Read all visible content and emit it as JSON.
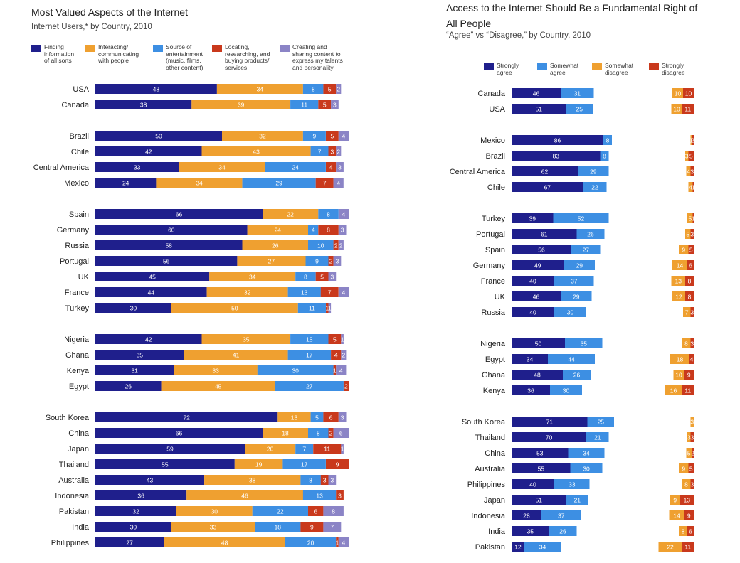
{
  "colors": {
    "dark_blue": "#1f1f8c",
    "light_blue": "#3d8fe3",
    "orange": "#efa030",
    "red": "#c9391c",
    "purple": "#8b84c6"
  },
  "chart_data": [
    {
      "type": "bar",
      "orientation": "horizontal",
      "stacked": true,
      "title": "Most Valued Aspects of the Internet",
      "subtitle": "Internet Users,* by Country, 2010",
      "legend_position": "top",
      "legend": [
        "Finding\ninformation\nof all sorts",
        "Interacting/\ncommunicating\nwith people",
        "Source of\nentertainment\n(music, films,\nother content)",
        "Locating,\nresearching, and\nbuying products/\nservices",
        "Creating and\nsharing content to\nexpress my talents\nand personality"
      ],
      "groups": [
        [
          {
            "label": "USA",
            "values": [
              48,
              34,
              8,
              5,
              2
            ]
          },
          {
            "label": "Canada",
            "values": [
              38,
              39,
              11,
              5,
              3
            ]
          }
        ],
        [
          {
            "label": "Brazil",
            "values": [
              50,
              32,
              9,
              5,
              4
            ]
          },
          {
            "label": "Chile",
            "values": [
              42,
              43,
              7,
              3,
              2
            ]
          },
          {
            "label": "Central America",
            "values": [
              33,
              34,
              24,
              4,
              3
            ]
          },
          {
            "label": "Mexico",
            "values": [
              24,
              34,
              29,
              7,
              4
            ]
          }
        ],
        [
          {
            "label": "Spain",
            "values": [
              66,
              22,
              8,
              0,
              4
            ]
          },
          {
            "label": "Germany",
            "values": [
              60,
              24,
              4,
              8,
              3
            ]
          },
          {
            "label": "Russia",
            "values": [
              58,
              26,
              10,
              2,
              2
            ]
          },
          {
            "label": "Portugal",
            "values": [
              56,
              27,
              9,
              2,
              3
            ]
          },
          {
            "label": "UK",
            "values": [
              45,
              34,
              8,
              5,
              3
            ]
          },
          {
            "label": "France",
            "values": [
              44,
              32,
              13,
              7,
              4
            ]
          },
          {
            "label": "Turkey",
            "values": [
              30,
              50,
              11,
              1,
              1
            ]
          }
        ],
        [
          {
            "label": "Nigeria",
            "values": [
              42,
              35,
              15,
              5,
              1
            ]
          },
          {
            "label": "Ghana",
            "values": [
              35,
              41,
              17,
              4,
              2
            ]
          },
          {
            "label": "Kenya",
            "values": [
              31,
              33,
              30,
              1,
              4
            ]
          },
          {
            "label": "Egypt",
            "values": [
              26,
              45,
              27,
              2,
              0
            ]
          }
        ],
        [
          {
            "label": "South Korea",
            "values": [
              72,
              13,
              5,
              6,
              3
            ]
          },
          {
            "label": "China",
            "values": [
              66,
              18,
              8,
              2,
              6
            ]
          },
          {
            "label": "Japan",
            "values": [
              59,
              20,
              7,
              11,
              1
            ]
          },
          {
            "label": "Thailand",
            "values": [
              55,
              19,
              17,
              9,
              0
            ]
          },
          {
            "label": "Australia",
            "values": [
              43,
              38,
              8,
              3,
              3
            ]
          },
          {
            "label": "Indonesia",
            "values": [
              36,
              46,
              13,
              3,
              0
            ]
          },
          {
            "label": "Pakistan",
            "values": [
              32,
              30,
              22,
              6,
              8
            ]
          },
          {
            "label": "India",
            "values": [
              30,
              33,
              18,
              9,
              7
            ]
          },
          {
            "label": "Philippines",
            "values": [
              27,
              48,
              20,
              1,
              4
            ]
          }
        ]
      ]
    },
    {
      "type": "bar",
      "orientation": "horizontal",
      "diverging": true,
      "title": "Access to the Internet Should Be a Fundamental Right of All People",
      "subtitle": "“Agree” vs “Disagree,” by Country, 2010",
      "legend_position": "top",
      "legend": [
        "Strongly\nagree",
        "Somewhat\nagree",
        "Somewhat\ndisagree",
        "Strongly\ndisagree"
      ],
      "groups": [
        [
          {
            "label": "Canada",
            "values": [
              46,
              31,
              10,
              10
            ]
          },
          {
            "label": "USA",
            "values": [
              51,
              25,
              10,
              11
            ]
          }
        ],
        [
          {
            "label": "Mexico",
            "values": [
              86,
              8,
              1,
              2
            ]
          },
          {
            "label": "Brazil",
            "values": [
              83,
              8,
              3,
              5
            ]
          },
          {
            "label": "Central America",
            "values": [
              62,
              29,
              4,
              3
            ]
          },
          {
            "label": "Chile",
            "values": [
              67,
              22,
              4,
              1
            ]
          }
        ],
        [
          {
            "label": "Turkey",
            "values": [
              39,
              52,
              5,
              1
            ]
          },
          {
            "label": "Portugal",
            "values": [
              61,
              26,
              5,
              3
            ]
          },
          {
            "label": "Spain",
            "values": [
              56,
              27,
              9,
              5
            ]
          },
          {
            "label": "Germany",
            "values": [
              49,
              29,
              14,
              6
            ]
          },
          {
            "label": "France",
            "values": [
              40,
              37,
              13,
              8
            ]
          },
          {
            "label": "UK",
            "values": [
              46,
              29,
              12,
              8
            ]
          },
          {
            "label": "Russia",
            "values": [
              40,
              30,
              7,
              3
            ]
          }
        ],
        [
          {
            "label": "Nigeria",
            "values": [
              50,
              35,
              8,
              3
            ]
          },
          {
            "label": "Egypt",
            "values": [
              34,
              44,
              18,
              4
            ]
          },
          {
            "label": "Ghana",
            "values": [
              48,
              26,
              10,
              9
            ]
          },
          {
            "label": "Kenya",
            "values": [
              36,
              30,
              16,
              11
            ]
          }
        ],
        [
          {
            "label": "South Korea",
            "values": [
              71,
              25,
              3,
              0
            ]
          },
          {
            "label": "Thailand",
            "values": [
              70,
              21,
              3,
              3
            ]
          },
          {
            "label": "China",
            "values": [
              53,
              34,
              5,
              2
            ]
          },
          {
            "label": "Australia",
            "values": [
              55,
              30,
              9,
              5
            ]
          },
          {
            "label": "Philippines",
            "values": [
              40,
              33,
              8,
              3
            ]
          },
          {
            "label": "Japan",
            "values": [
              51,
              21,
              9,
              13
            ]
          },
          {
            "label": "Indonesia",
            "values": [
              28,
              37,
              14,
              9
            ]
          },
          {
            "label": "India",
            "values": [
              35,
              26,
              8,
              6
            ]
          },
          {
            "label": "Pakistan",
            "values": [
              12,
              34,
              22,
              11
            ]
          }
        ]
      ]
    }
  ]
}
